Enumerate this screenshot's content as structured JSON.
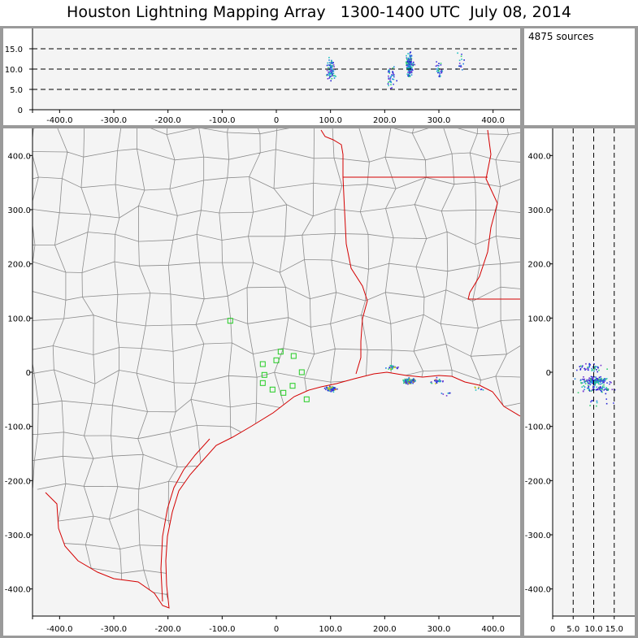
{
  "title": "Houston Lightning Mapping Array   1300-1400 UTC  July 08, 2014",
  "sources_label": "4875 sources",
  "colors": {
    "frame": "#9a9a9a",
    "panel": "#f4f4f4",
    "county": "#8c8c8c",
    "coast": "#d40000",
    "station": "#22cc22"
  },
  "chart_data": [
    {
      "type": "scatter",
      "panel": "plan-view",
      "xlim": [
        -450,
        450
      ],
      "ylim": [
        -450,
        450
      ],
      "x_ticks": [
        "-400.0",
        "-300.0",
        "-200.0",
        "-100.0",
        "0",
        "100.0",
        "200.0",
        "300.0",
        "400.0"
      ],
      "y_ticks": [
        "400.0",
        "300.0",
        "200.0",
        "100.0",
        "0",
        "-100.0",
        "-200.0",
        "-300.0",
        "-400.0"
      ],
      "stations": [
        [
          -85,
          95
        ],
        [
          -25,
          15
        ],
        [
          0,
          22
        ],
        [
          8,
          38
        ],
        [
          32,
          30
        ],
        [
          47,
          0
        ],
        [
          -25,
          -20
        ],
        [
          -22,
          -5
        ],
        [
          -7,
          -32
        ],
        [
          13,
          -38
        ],
        [
          30,
          -25
        ],
        [
          56,
          -50
        ]
      ],
      "source_clusters": [
        {
          "x": 100,
          "y": -30,
          "count": 70
        },
        {
          "x": 210,
          "y": 10,
          "count": 25
        },
        {
          "x": 245,
          "y": -15,
          "count": 150
        },
        {
          "x": 295,
          "y": -15,
          "count": 30
        },
        {
          "x": 315,
          "y": -40,
          "count": 6
        },
        {
          "x": 370,
          "y": -30,
          "count": 8
        }
      ]
    },
    {
      "type": "scatter",
      "panel": "east-west-altitude",
      "xlim": [
        -450,
        450
      ],
      "ylim": [
        0,
        20
      ],
      "x_ticks": [
        "-400.0",
        "-300.0",
        "-200.0",
        "-100.0",
        "0",
        "100.0",
        "200.0",
        "300.0",
        "400.0"
      ],
      "y_ticks": [
        "15.0",
        "10.0",
        "5.0",
        "0"
      ],
      "dashed_levels": [
        5,
        10,
        15
      ],
      "source_clusters": [
        {
          "x": 100,
          "z": 10,
          "count": 80
        },
        {
          "x": 210,
          "z": 8,
          "count": 40
        },
        {
          "x": 245,
          "z": 11,
          "count": 160
        },
        {
          "x": 300,
          "z": 10,
          "count": 30
        },
        {
          "x": 340,
          "z": 12,
          "count": 15
        }
      ]
    },
    {
      "type": "scatter",
      "panel": "altitude-north-south",
      "xlim": [
        0,
        20
      ],
      "ylim": [
        -450,
        450
      ],
      "x_ticks": [
        "0",
        "5.0",
        "10.0",
        "15.0"
      ],
      "y_ticks": [
        "400.0",
        "300.0",
        "200.0",
        "100.0",
        "0",
        "-100.0",
        "-200.0",
        "-300.0",
        "-400.0"
      ],
      "dashed_levels": [
        5,
        10,
        15
      ],
      "source_clusters": [
        {
          "z": 10,
          "y": -15,
          "count": 150
        },
        {
          "z": 9,
          "y": 10,
          "count": 40
        },
        {
          "z": 11,
          "y": -30,
          "count": 60
        },
        {
          "z": 10,
          "y": -55,
          "count": 10
        }
      ]
    }
  ]
}
